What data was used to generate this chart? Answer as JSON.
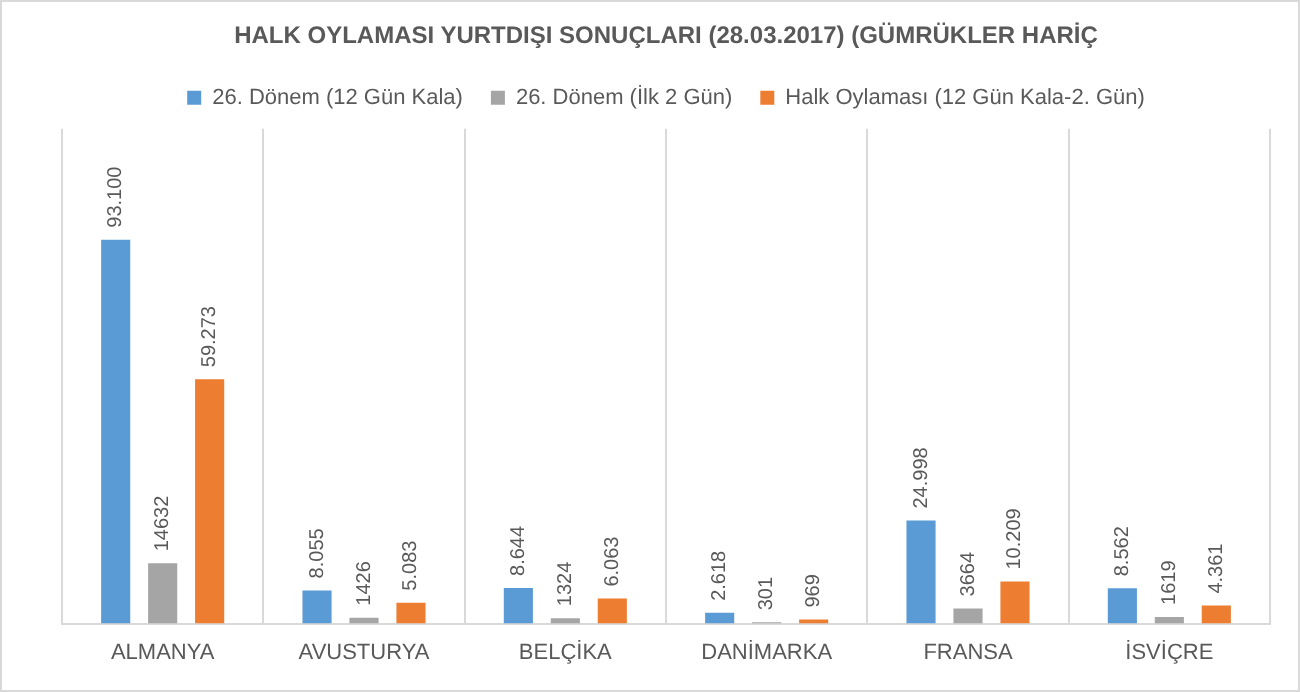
{
  "chart_data": {
    "type": "bar",
    "title": "HALK OYLAMASI YURTDIŞI SONUÇLARI (28.03.2017) (GÜMRÜKLER HARİÇ",
    "categories": [
      "ALMANYA",
      "AVUSTURYA",
      "BELÇİKA",
      "DANİMARKA",
      "FRANSA",
      "İSVİÇRE"
    ],
    "series": [
      {
        "name": "26. Dönem (12 Gün Kala)",
        "color": "#5b9bd5",
        "values": [
          93100,
          8055,
          8644,
          2618,
          24998,
          8562
        ],
        "value_labels": [
          "93.100",
          "8.055",
          "8.644",
          "2.618",
          "24.998",
          "8.562"
        ]
      },
      {
        "name": "26. Dönem (İlk 2 Gün)",
        "color": "#a5a5a5",
        "values": [
          14632,
          1426,
          1324,
          301,
          3664,
          1619
        ],
        "value_labels": [
          "14632",
          "1426",
          "1324",
          "301",
          "3664",
          "1619"
        ]
      },
      {
        "name": "Halk Oylaması (12 Gün Kala-2. Gün)",
        "color": "#ed7d31",
        "values": [
          59273,
          5083,
          6063,
          969,
          10209,
          4361
        ],
        "value_labels": [
          "59.273",
          "5.083",
          "6.063",
          "969",
          "10.209",
          "4.361"
        ]
      }
    ],
    "grid": "x",
    "legend": "top"
  }
}
